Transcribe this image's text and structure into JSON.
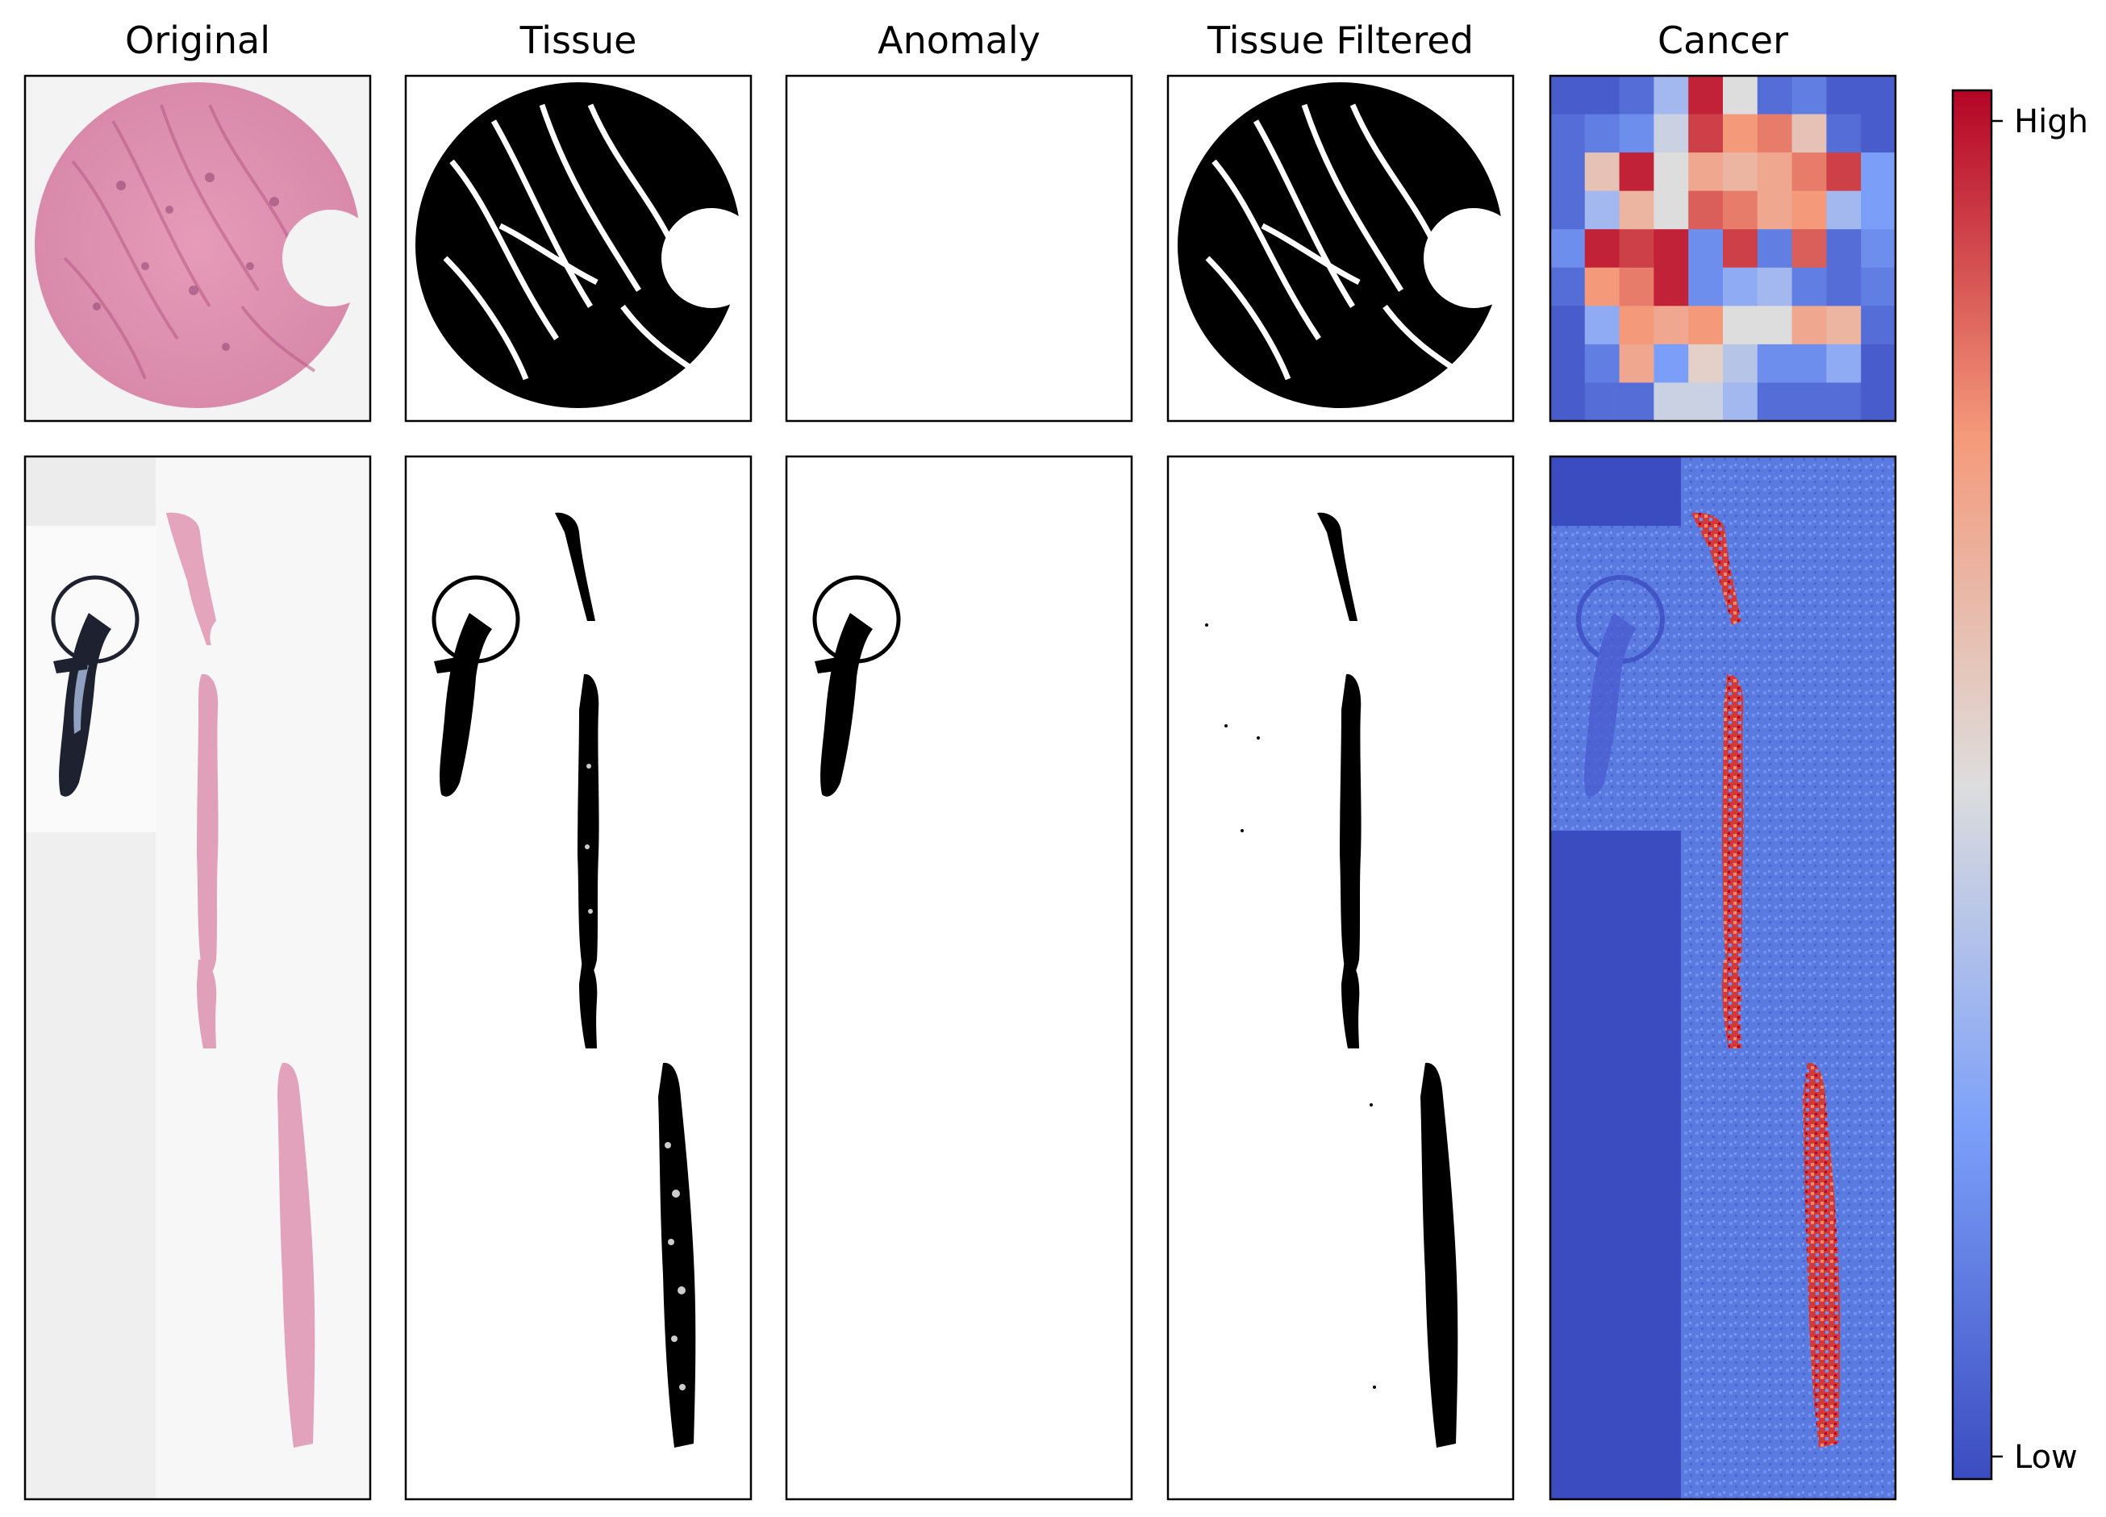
{
  "figure": {
    "columns": [
      {
        "id": "original",
        "title": "Original"
      },
      {
        "id": "tissue",
        "title": "Tissue"
      },
      {
        "id": "anomaly",
        "title": "Anomaly"
      },
      {
        "id": "tissue-filtered",
        "title": "Tissue Filtered"
      },
      {
        "id": "cancer",
        "title": "Cancer"
      }
    ],
    "colorbar": {
      "colormap": "coolwarm",
      "low_color": "#3b4cc0",
      "mid_color": "#dddddd",
      "high_color": "#b40426",
      "ticks": [
        {
          "value": 1,
          "label": "High"
        },
        {
          "value": 0,
          "label": "Low"
        }
      ]
    },
    "colors": {
      "he_stain_pink": "#e8a0bb",
      "he_background": "#f3f3f3",
      "mask_fill": "#000000",
      "panel_frame": "#000000"
    }
  },
  "chart_data": {
    "type": "heatmap",
    "colormap": "coolwarm",
    "scale": [
      0,
      1
    ],
    "tma_cancer_grid": [
      [
        0.05,
        0.05,
        0.1,
        0.35,
        0.95,
        0.5,
        0.1,
        0.15,
        0.05,
        0.05
      ],
      [
        0.1,
        0.15,
        0.2,
        0.45,
        0.9,
        0.75,
        0.8,
        0.6,
        0.1,
        0.05
      ],
      [
        0.1,
        0.6,
        0.95,
        0.5,
        0.7,
        0.65,
        0.7,
        0.8,
        0.9,
        0.25
      ],
      [
        0.1,
        0.35,
        0.65,
        0.5,
        0.85,
        0.8,
        0.7,
        0.75,
        0.35,
        0.25
      ],
      [
        0.2,
        0.95,
        0.9,
        0.95,
        0.2,
        0.9,
        0.15,
        0.85,
        0.1,
        0.2
      ],
      [
        0.1,
        0.75,
        0.8,
        0.95,
        0.2,
        0.3,
        0.35,
        0.15,
        0.1,
        0.15
      ],
      [
        0.05,
        0.3,
        0.75,
        0.7,
        0.75,
        0.5,
        0.5,
        0.7,
        0.65,
        0.1
      ],
      [
        0.05,
        0.15,
        0.7,
        0.25,
        0.55,
        0.4,
        0.2,
        0.2,
        0.3,
        0.05
      ],
      [
        0.05,
        0.1,
        0.1,
        0.45,
        0.45,
        0.35,
        0.1,
        0.1,
        0.1,
        0.05
      ]
    ]
  }
}
